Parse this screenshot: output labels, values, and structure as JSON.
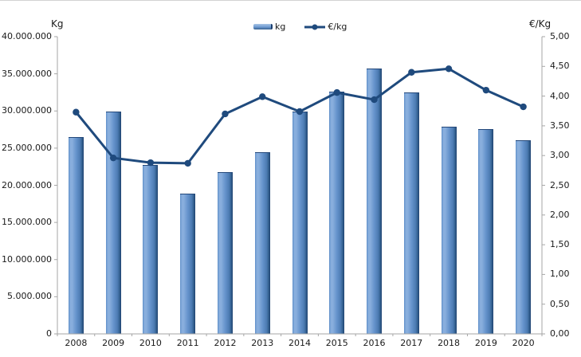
{
  "chart": {
    "left_axis_title": "Kg",
    "right_axis_title": "€/Kg",
    "legend": [
      {
        "label": "kg",
        "swatch": "bar-swatch"
      },
      {
        "label": "€/kg",
        "swatch": "line-swatch"
      }
    ]
  },
  "chart_data": {
    "type": "bar+line combo",
    "title": "",
    "categories": [
      "2008",
      "2009",
      "2010",
      "2011",
      "2012",
      "2013",
      "2014",
      "2015",
      "2016",
      "2017",
      "2018",
      "2019",
      "2020"
    ],
    "series": [
      {
        "name": "kg",
        "type": "bar",
        "axis": "left",
        "values": [
          26500000,
          29900000,
          22700000,
          18900000,
          21800000,
          24400000,
          29900000,
          32600000,
          35700000,
          32500000,
          27900000,
          27600000,
          26100000
        ]
      },
      {
        "name": "€/kg",
        "type": "line",
        "axis": "right",
        "values": [
          3.73,
          2.96,
          2.88,
          2.87,
          3.7,
          3.99,
          3.74,
          4.06,
          3.94,
          4.4,
          4.46,
          4.1,
          3.82
        ]
      }
    ],
    "left_axis": {
      "label": "Kg",
      "range": [
        0,
        40000000
      ],
      "tick_labels": [
        "40.000.000",
        "35.000.000",
        "30.000.000",
        "25.000.000",
        "20.000.000",
        "15.000.000",
        "10.000.000",
        "5.000.000",
        "0"
      ]
    },
    "right_axis": {
      "label": "€/Kg",
      "range": [
        0,
        5
      ],
      "tick_labels": [
        "5,00",
        "4,50",
        "4,00",
        "3,50",
        "3,00",
        "2,50",
        "2,00",
        "1,50",
        "1,00",
        "0,50",
        "0,00"
      ]
    },
    "legend_position": "top-center",
    "grid": false,
    "colors": {
      "bar_fill": "#6492cb",
      "bar_highlight": "#88aedd",
      "bar_edge": "#1d3f6e",
      "line": "#1f4a7d",
      "axis": "#a6a6a6",
      "text": "#1a1a1a"
    }
  }
}
